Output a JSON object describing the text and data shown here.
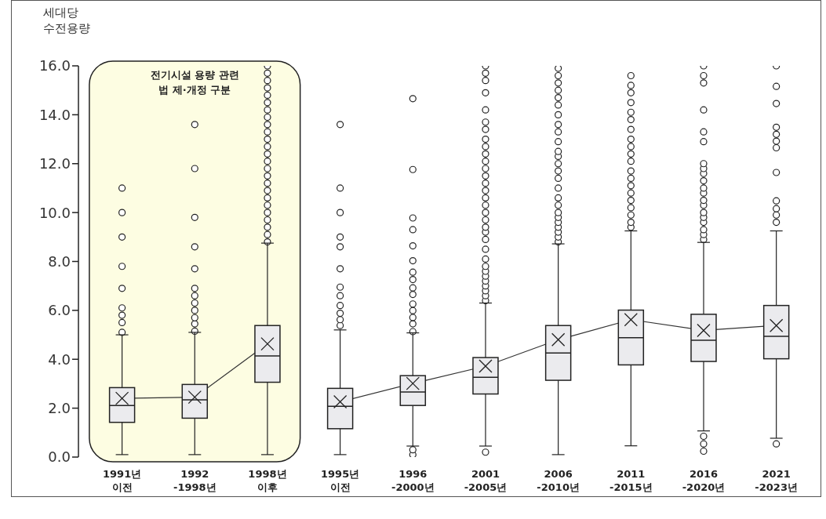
{
  "chart_data": {
    "type": "box",
    "ylabel": "세대당\n수전용량",
    "categories": [
      "1991년\n이전",
      "1992\n-1998년",
      "1998년\n이후",
      "1995년\n이전",
      "1996\n-2000년",
      "2001\n-2005년",
      "2006\n-2010년",
      "2011\n-2015년",
      "2016\n-2020년",
      "2021\n-2023년"
    ],
    "boxes": [
      {
        "low": 0.1,
        "q1": 1.42,
        "median": 2.11,
        "q3": 2.84,
        "high": 5.0,
        "mean": 2.4,
        "outliers": [
          5.1,
          5.5,
          5.8,
          6.1,
          6.9,
          7.8,
          9.0,
          10.0,
          11.0
        ]
      },
      {
        "low": 0.1,
        "q1": 1.59,
        "median": 2.34,
        "q3": 2.97,
        "high": 5.1,
        "mean": 2.45,
        "outliers": [
          5.15,
          5.45,
          5.7,
          6.0,
          6.3,
          6.6,
          6.9,
          7.7,
          8.6,
          9.8,
          11.8,
          13.6
        ]
      },
      {
        "low": 0.1,
        "q1": 3.06,
        "median": 4.14,
        "q3": 5.38,
        "high": 8.75,
        "mean": 4.63,
        "outliers": [
          8.8,
          9.1,
          9.4,
          9.7,
          10.0,
          10.3,
          10.6,
          10.9,
          11.2,
          11.5,
          11.8,
          12.1,
          12.4,
          12.7,
          13.0,
          13.3,
          13.6,
          13.9,
          14.2,
          14.5,
          14.8,
          15.1,
          15.4,
          15.7,
          16.0
        ]
      },
      {
        "low": 0.1,
        "q1": 1.16,
        "median": 2.08,
        "q3": 2.81,
        "high": 5.2,
        "mean": 2.26,
        "outliers": [
          5.38,
          5.62,
          5.88,
          6.2,
          6.6,
          6.95,
          7.7,
          8.6,
          9.0,
          10.0,
          11.0,
          13.6
        ]
      },
      {
        "low": 0.45,
        "q1": 2.11,
        "median": 2.66,
        "q3": 3.33,
        "high": 5.08,
        "mean": 3.01,
        "outliers": [
          0.1,
          0.3,
          5.13,
          5.45,
          5.71,
          5.99,
          6.26,
          6.65,
          6.92,
          7.26,
          7.56,
          8.03,
          8.64,
          9.3,
          9.78,
          11.76,
          14.66
        ]
      },
      {
        "low": 0.45,
        "q1": 2.58,
        "median": 3.26,
        "q3": 4.07,
        "high": 6.3,
        "mean": 3.72,
        "outliers": [
          0.2,
          6.4,
          6.6,
          6.8,
          7.0,
          7.2,
          7.4,
          7.6,
          7.8,
          8.1,
          8.5,
          8.9,
          9.2,
          9.4,
          9.7,
          10.0,
          10.3,
          10.6,
          10.9,
          11.2,
          11.5,
          11.8,
          12.1,
          12.4,
          12.7,
          13.0,
          13.4,
          13.7,
          14.2,
          14.9,
          15.4,
          15.7,
          16.0
        ]
      },
      {
        "low": 0.1,
        "q1": 3.14,
        "median": 4.26,
        "q3": 5.38,
        "high": 8.72,
        "mean": 4.8,
        "outliers": [
          8.8,
          9.0,
          9.2,
          9.4,
          9.6,
          9.8,
          10.0,
          10.3,
          10.6,
          11.0,
          11.4,
          11.7,
          12.0,
          12.3,
          12.5,
          12.9,
          13.3,
          13.6,
          14.0,
          14.4,
          14.7,
          15.0,
          15.3,
          15.6,
          15.9
        ]
      },
      {
        "low": 0.46,
        "q1": 3.77,
        "median": 4.88,
        "q3": 6.01,
        "high": 9.25,
        "mean": 5.62,
        "outliers": [
          9.4,
          9.6,
          9.9,
          10.2,
          10.5,
          10.8,
          11.1,
          11.4,
          11.7,
          12.1,
          12.4,
          12.7,
          13.0,
          13.4,
          13.8,
          14.1,
          14.5,
          14.9,
          15.2,
          15.6
        ]
      },
      {
        "low": 1.07,
        "q1": 3.91,
        "median": 4.78,
        "q3": 5.84,
        "high": 8.78,
        "mean": 5.18,
        "outliers": [
          0.24,
          0.54,
          0.85,
          8.9,
          9.1,
          9.3,
          9.6,
          9.8,
          10.0,
          10.3,
          10.5,
          10.8,
          11.0,
          11.3,
          11.6,
          11.8,
          12.0,
          12.9,
          13.3,
          14.2,
          15.3,
          15.6,
          16.0
        ]
      },
      {
        "low": 0.77,
        "q1": 4.02,
        "median": 4.94,
        "q3": 6.2,
        "high": 9.25,
        "mean": 5.38,
        "outliers": [
          0.54,
          9.6,
          9.9,
          10.16,
          10.48,
          11.64,
          12.65,
          12.92,
          13.2,
          13.49,
          14.46,
          15.16,
          16.0
        ]
      }
    ],
    "ylim": [
      0,
      16
    ],
    "yticks": [
      {
        "value": 0,
        "label": "0.0"
      },
      {
        "value": 2,
        "label": "2.0"
      },
      {
        "value": 4,
        "label": "4.0"
      },
      {
        "value": 6,
        "label": "6.0"
      },
      {
        "value": 8,
        "label": "8.0"
      },
      {
        "value": 10,
        "label": "10.0"
      },
      {
        "value": 12,
        "label": "12.0"
      },
      {
        "value": 14,
        "label": "14.0"
      },
      {
        "value": 16,
        "label": "16.0"
      }
    ],
    "bands": [
      {
        "axis": "x",
        "from": "1991년\n이전",
        "to": "1998년\n이후",
        "label": "전기시설 용량 관련\n법 제·개정 구분",
        "color": "#fdfde2"
      }
    ],
    "series": [
      {
        "type": "line",
        "x": [
          "1991년\n이전",
          "1992\n-1998년",
          "1998년\n이후"
        ],
        "values": [
          2.4,
          2.45,
          4.63
        ],
        "color": "#333333",
        "marker": "none"
      },
      {
        "type": "line",
        "x": [
          "1995년\n이전",
          "1996\n-2000년",
          "2001\n-2005년",
          "2006\n-2010년",
          "2011\n-2015년",
          "2016\n-2020년",
          "2021\n-2023년"
        ],
        "values": [
          2.26,
          3.01,
          3.72,
          4.8,
          5.62,
          5.18,
          5.38
        ],
        "color": "#333333",
        "marker": "none"
      }
    ],
    "marker": "circle"
  }
}
